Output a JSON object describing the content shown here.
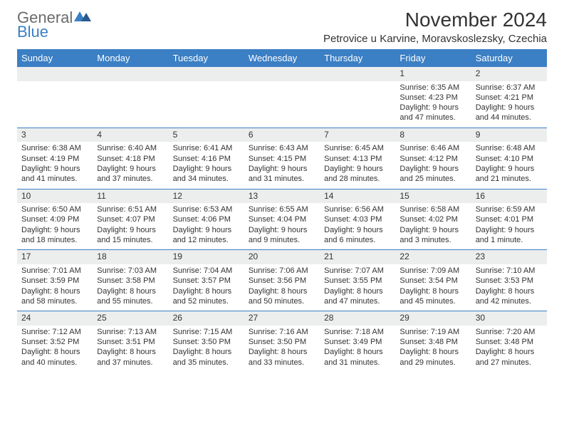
{
  "logo": {
    "text1": "General",
    "text2": "Blue"
  },
  "title": "November 2024",
  "location": "Petrovice u Karvine, Moravskoslezsky, Czechia",
  "colors": {
    "header_bg": "#3b7fc4",
    "header_text": "#ffffff",
    "daynum_bg": "#eceded",
    "border": "#3b7fc4",
    "body_text": "#333333",
    "logo_grey": "#6b6b6b",
    "logo_blue": "#3b7fc4",
    "page_bg": "#ffffff"
  },
  "weekdays": [
    "Sunday",
    "Monday",
    "Tuesday",
    "Wednesday",
    "Thursday",
    "Friday",
    "Saturday"
  ],
  "weeks": [
    [
      null,
      null,
      null,
      null,
      null,
      {
        "n": "1",
        "sunrise": "Sunrise: 6:35 AM",
        "sunset": "Sunset: 4:23 PM",
        "day1": "Daylight: 9 hours",
        "day2": "and 47 minutes."
      },
      {
        "n": "2",
        "sunrise": "Sunrise: 6:37 AM",
        "sunset": "Sunset: 4:21 PM",
        "day1": "Daylight: 9 hours",
        "day2": "and 44 minutes."
      }
    ],
    [
      {
        "n": "3",
        "sunrise": "Sunrise: 6:38 AM",
        "sunset": "Sunset: 4:19 PM",
        "day1": "Daylight: 9 hours",
        "day2": "and 41 minutes."
      },
      {
        "n": "4",
        "sunrise": "Sunrise: 6:40 AM",
        "sunset": "Sunset: 4:18 PM",
        "day1": "Daylight: 9 hours",
        "day2": "and 37 minutes."
      },
      {
        "n": "5",
        "sunrise": "Sunrise: 6:41 AM",
        "sunset": "Sunset: 4:16 PM",
        "day1": "Daylight: 9 hours",
        "day2": "and 34 minutes."
      },
      {
        "n": "6",
        "sunrise": "Sunrise: 6:43 AM",
        "sunset": "Sunset: 4:15 PM",
        "day1": "Daylight: 9 hours",
        "day2": "and 31 minutes."
      },
      {
        "n": "7",
        "sunrise": "Sunrise: 6:45 AM",
        "sunset": "Sunset: 4:13 PM",
        "day1": "Daylight: 9 hours",
        "day2": "and 28 minutes."
      },
      {
        "n": "8",
        "sunrise": "Sunrise: 6:46 AM",
        "sunset": "Sunset: 4:12 PM",
        "day1": "Daylight: 9 hours",
        "day2": "and 25 minutes."
      },
      {
        "n": "9",
        "sunrise": "Sunrise: 6:48 AM",
        "sunset": "Sunset: 4:10 PM",
        "day1": "Daylight: 9 hours",
        "day2": "and 21 minutes."
      }
    ],
    [
      {
        "n": "10",
        "sunrise": "Sunrise: 6:50 AM",
        "sunset": "Sunset: 4:09 PM",
        "day1": "Daylight: 9 hours",
        "day2": "and 18 minutes."
      },
      {
        "n": "11",
        "sunrise": "Sunrise: 6:51 AM",
        "sunset": "Sunset: 4:07 PM",
        "day1": "Daylight: 9 hours",
        "day2": "and 15 minutes."
      },
      {
        "n": "12",
        "sunrise": "Sunrise: 6:53 AM",
        "sunset": "Sunset: 4:06 PM",
        "day1": "Daylight: 9 hours",
        "day2": "and 12 minutes."
      },
      {
        "n": "13",
        "sunrise": "Sunrise: 6:55 AM",
        "sunset": "Sunset: 4:04 PM",
        "day1": "Daylight: 9 hours",
        "day2": "and 9 minutes."
      },
      {
        "n": "14",
        "sunrise": "Sunrise: 6:56 AM",
        "sunset": "Sunset: 4:03 PM",
        "day1": "Daylight: 9 hours",
        "day2": "and 6 minutes."
      },
      {
        "n": "15",
        "sunrise": "Sunrise: 6:58 AM",
        "sunset": "Sunset: 4:02 PM",
        "day1": "Daylight: 9 hours",
        "day2": "and 3 minutes."
      },
      {
        "n": "16",
        "sunrise": "Sunrise: 6:59 AM",
        "sunset": "Sunset: 4:01 PM",
        "day1": "Daylight: 9 hours",
        "day2": "and 1 minute."
      }
    ],
    [
      {
        "n": "17",
        "sunrise": "Sunrise: 7:01 AM",
        "sunset": "Sunset: 3:59 PM",
        "day1": "Daylight: 8 hours",
        "day2": "and 58 minutes."
      },
      {
        "n": "18",
        "sunrise": "Sunrise: 7:03 AM",
        "sunset": "Sunset: 3:58 PM",
        "day1": "Daylight: 8 hours",
        "day2": "and 55 minutes."
      },
      {
        "n": "19",
        "sunrise": "Sunrise: 7:04 AM",
        "sunset": "Sunset: 3:57 PM",
        "day1": "Daylight: 8 hours",
        "day2": "and 52 minutes."
      },
      {
        "n": "20",
        "sunrise": "Sunrise: 7:06 AM",
        "sunset": "Sunset: 3:56 PM",
        "day1": "Daylight: 8 hours",
        "day2": "and 50 minutes."
      },
      {
        "n": "21",
        "sunrise": "Sunrise: 7:07 AM",
        "sunset": "Sunset: 3:55 PM",
        "day1": "Daylight: 8 hours",
        "day2": "and 47 minutes."
      },
      {
        "n": "22",
        "sunrise": "Sunrise: 7:09 AM",
        "sunset": "Sunset: 3:54 PM",
        "day1": "Daylight: 8 hours",
        "day2": "and 45 minutes."
      },
      {
        "n": "23",
        "sunrise": "Sunrise: 7:10 AM",
        "sunset": "Sunset: 3:53 PM",
        "day1": "Daylight: 8 hours",
        "day2": "and 42 minutes."
      }
    ],
    [
      {
        "n": "24",
        "sunrise": "Sunrise: 7:12 AM",
        "sunset": "Sunset: 3:52 PM",
        "day1": "Daylight: 8 hours",
        "day2": "and 40 minutes."
      },
      {
        "n": "25",
        "sunrise": "Sunrise: 7:13 AM",
        "sunset": "Sunset: 3:51 PM",
        "day1": "Daylight: 8 hours",
        "day2": "and 37 minutes."
      },
      {
        "n": "26",
        "sunrise": "Sunrise: 7:15 AM",
        "sunset": "Sunset: 3:50 PM",
        "day1": "Daylight: 8 hours",
        "day2": "and 35 minutes."
      },
      {
        "n": "27",
        "sunrise": "Sunrise: 7:16 AM",
        "sunset": "Sunset: 3:50 PM",
        "day1": "Daylight: 8 hours",
        "day2": "and 33 minutes."
      },
      {
        "n": "28",
        "sunrise": "Sunrise: 7:18 AM",
        "sunset": "Sunset: 3:49 PM",
        "day1": "Daylight: 8 hours",
        "day2": "and 31 minutes."
      },
      {
        "n": "29",
        "sunrise": "Sunrise: 7:19 AM",
        "sunset": "Sunset: 3:48 PM",
        "day1": "Daylight: 8 hours",
        "day2": "and 29 minutes."
      },
      {
        "n": "30",
        "sunrise": "Sunrise: 7:20 AM",
        "sunset": "Sunset: 3:48 PM",
        "day1": "Daylight: 8 hours",
        "day2": "and 27 minutes."
      }
    ]
  ]
}
